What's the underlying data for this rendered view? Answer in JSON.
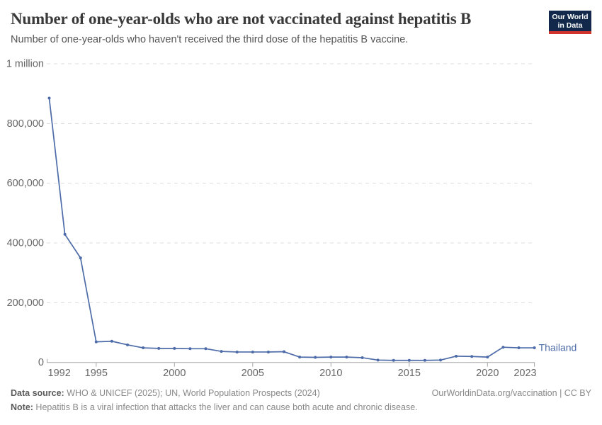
{
  "header": {
    "title": "Number of one-year-olds who are not vaccinated against hepatitis B",
    "subtitle": "Number of one-year-olds who haven't received the third dose of the hepatitis B vaccine.",
    "logo": {
      "line1": "Our World",
      "line2": "in Data"
    }
  },
  "chart_data": {
    "type": "line",
    "title": "Number of one-year-olds who are not vaccinated against hepatitis B",
    "xlabel": "",
    "ylabel": "",
    "xlim": [
      1992,
      2023
    ],
    "ylim": [
      0,
      1000000
    ],
    "grid": "horizontal-dashed",
    "legend_position": "end-of-line-label",
    "x_ticks": [
      1992,
      1995,
      2000,
      2005,
      2010,
      2015,
      2020,
      2023
    ],
    "y_ticks": [
      {
        "value": 0,
        "label": "0"
      },
      {
        "value": 200000,
        "label": "200,000"
      },
      {
        "value": 400000,
        "label": "400,000"
      },
      {
        "value": 600000,
        "label": "600,000"
      },
      {
        "value": 800000,
        "label": "800,000"
      },
      {
        "value": 1000000,
        "label": "1 million"
      }
    ],
    "series": [
      {
        "name": "Thailand",
        "color": "#4C6BA8",
        "x": [
          1992,
          1993,
          1994,
          1995,
          1996,
          1997,
          1998,
          1999,
          2000,
          2001,
          2002,
          2003,
          2004,
          2005,
          2006,
          2007,
          2008,
          2009,
          2010,
          2011,
          2012,
          2013,
          2014,
          2015,
          2016,
          2017,
          2018,
          2019,
          2020,
          2021,
          2022,
          2023
        ],
        "values": [
          885000,
          429000,
          350000,
          69000,
          71000,
          59000,
          49000,
          47000,
          47000,
          46000,
          46000,
          37000,
          35000,
          35000,
          35000,
          36000,
          18000,
          17000,
          18000,
          18000,
          16000,
          8000,
          7000,
          7000,
          7000,
          8000,
          21000,
          20000,
          18000,
          51000,
          49000,
          49000
        ]
      }
    ]
  },
  "footer": {
    "data_source_label": "Data source:",
    "data_source_text": " WHO & UNICEF (2025); UN, World Population Prospects (2024)",
    "rights": "OurWorldinData.org/vaccination | CC BY",
    "note_label": "Note:",
    "note_text": " Hepatitis B is a viral infection that attacks the liver and can cause both acute and chronic disease."
  },
  "colors": {
    "line": "#4C6BA8",
    "grid": "#dcdcdc",
    "axis": "#a7a7a7",
    "tick_text": "#666666",
    "title_text": "#3a3a3a",
    "subtitle_text": "#555555",
    "footer_text": "#898989",
    "footer_label": "#5b5b5b",
    "logo_bg": "#12294B",
    "logo_accent": "#D0342C"
  }
}
